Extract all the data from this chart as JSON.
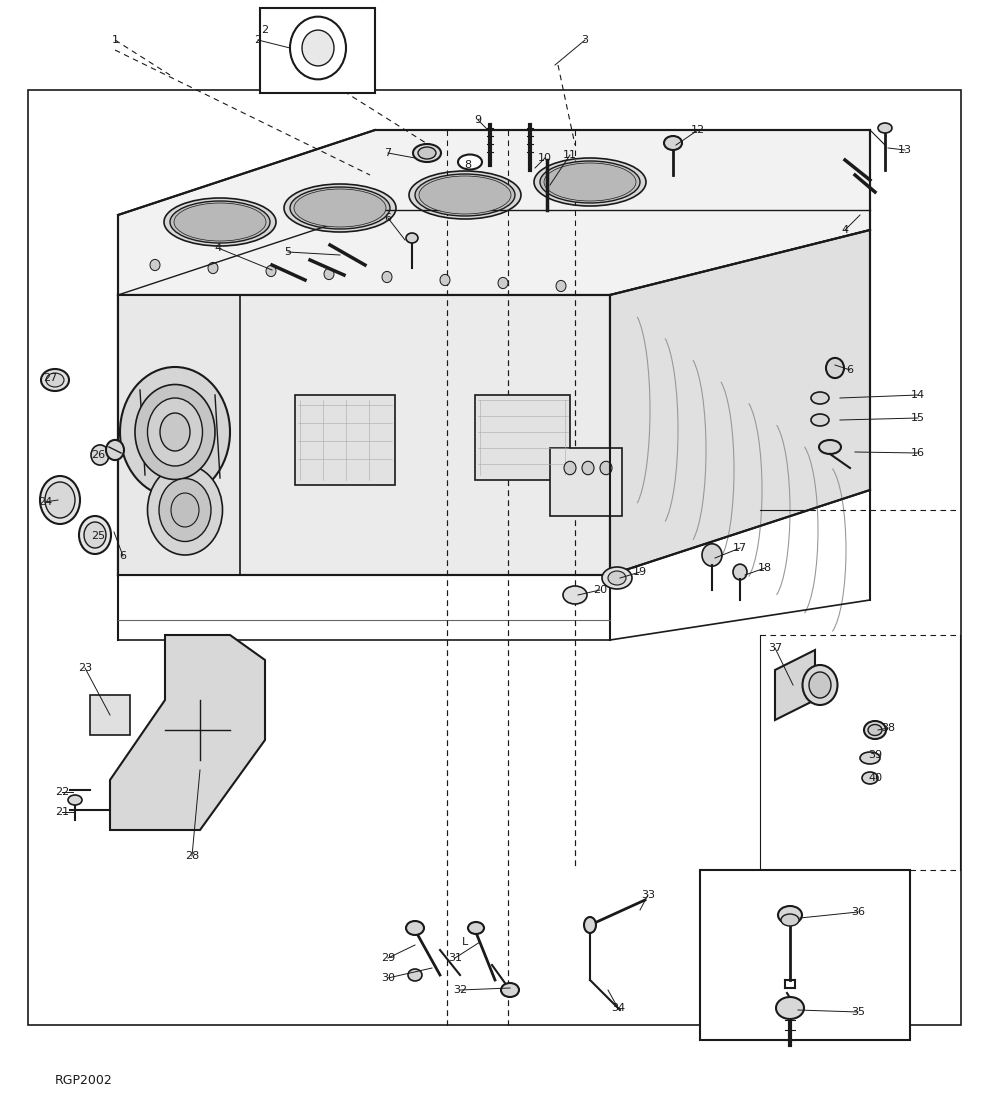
{
  "bg_color": "#ffffff",
  "fg_color": "#1a1a1a",
  "fig_width": 9.88,
  "fig_height": 11.06,
  "dpi": 100,
  "diagram_label": "RGP2002"
}
